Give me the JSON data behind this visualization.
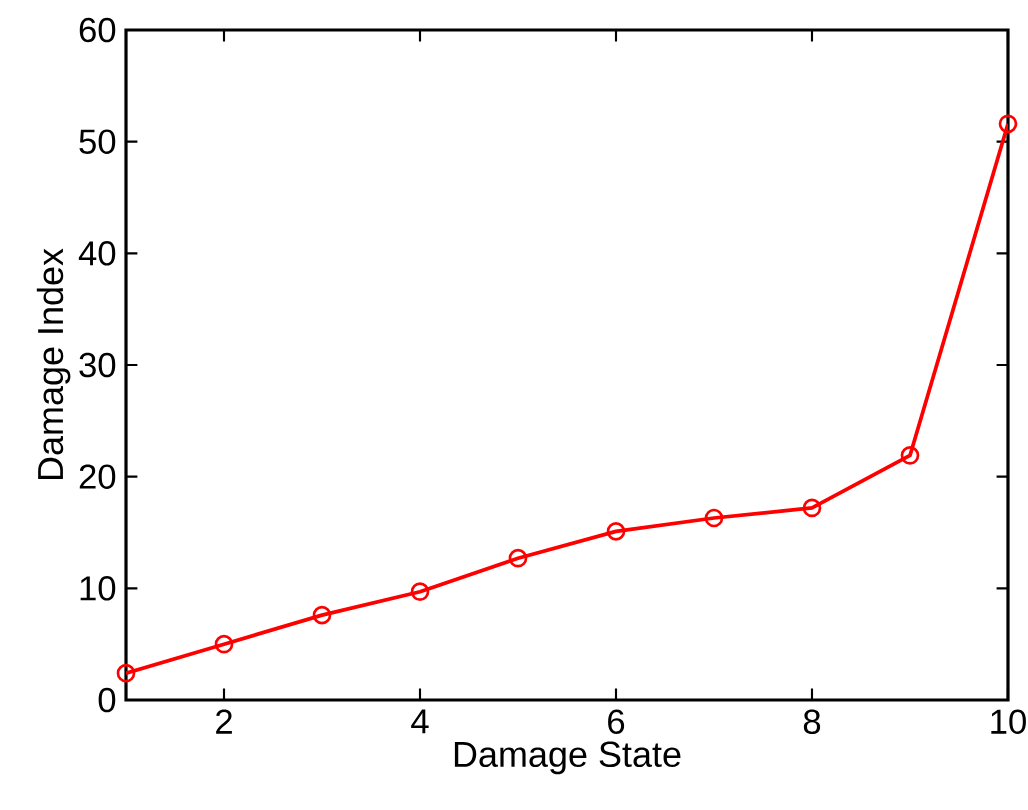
{
  "chart_data": {
    "type": "line",
    "xlabel": "Damage State",
    "ylabel": "Damage Index",
    "x": [
      1,
      2,
      3,
      4,
      5,
      6,
      7,
      8,
      9,
      10
    ],
    "series": [
      {
        "color": "#ff0000",
        "values": [
          2.4,
          5.0,
          7.6,
          9.7,
          12.7,
          15.1,
          16.3,
          17.2,
          21.9,
          51.6
        ]
      }
    ],
    "xlim": [
      1,
      10
    ],
    "ylim": [
      0,
      60
    ],
    "xticks": [
      2,
      4,
      6,
      8,
      10
    ],
    "yticks": [
      0,
      10,
      20,
      30,
      40,
      50,
      60
    ],
    "marker": "circle",
    "line_style": "solid"
  }
}
